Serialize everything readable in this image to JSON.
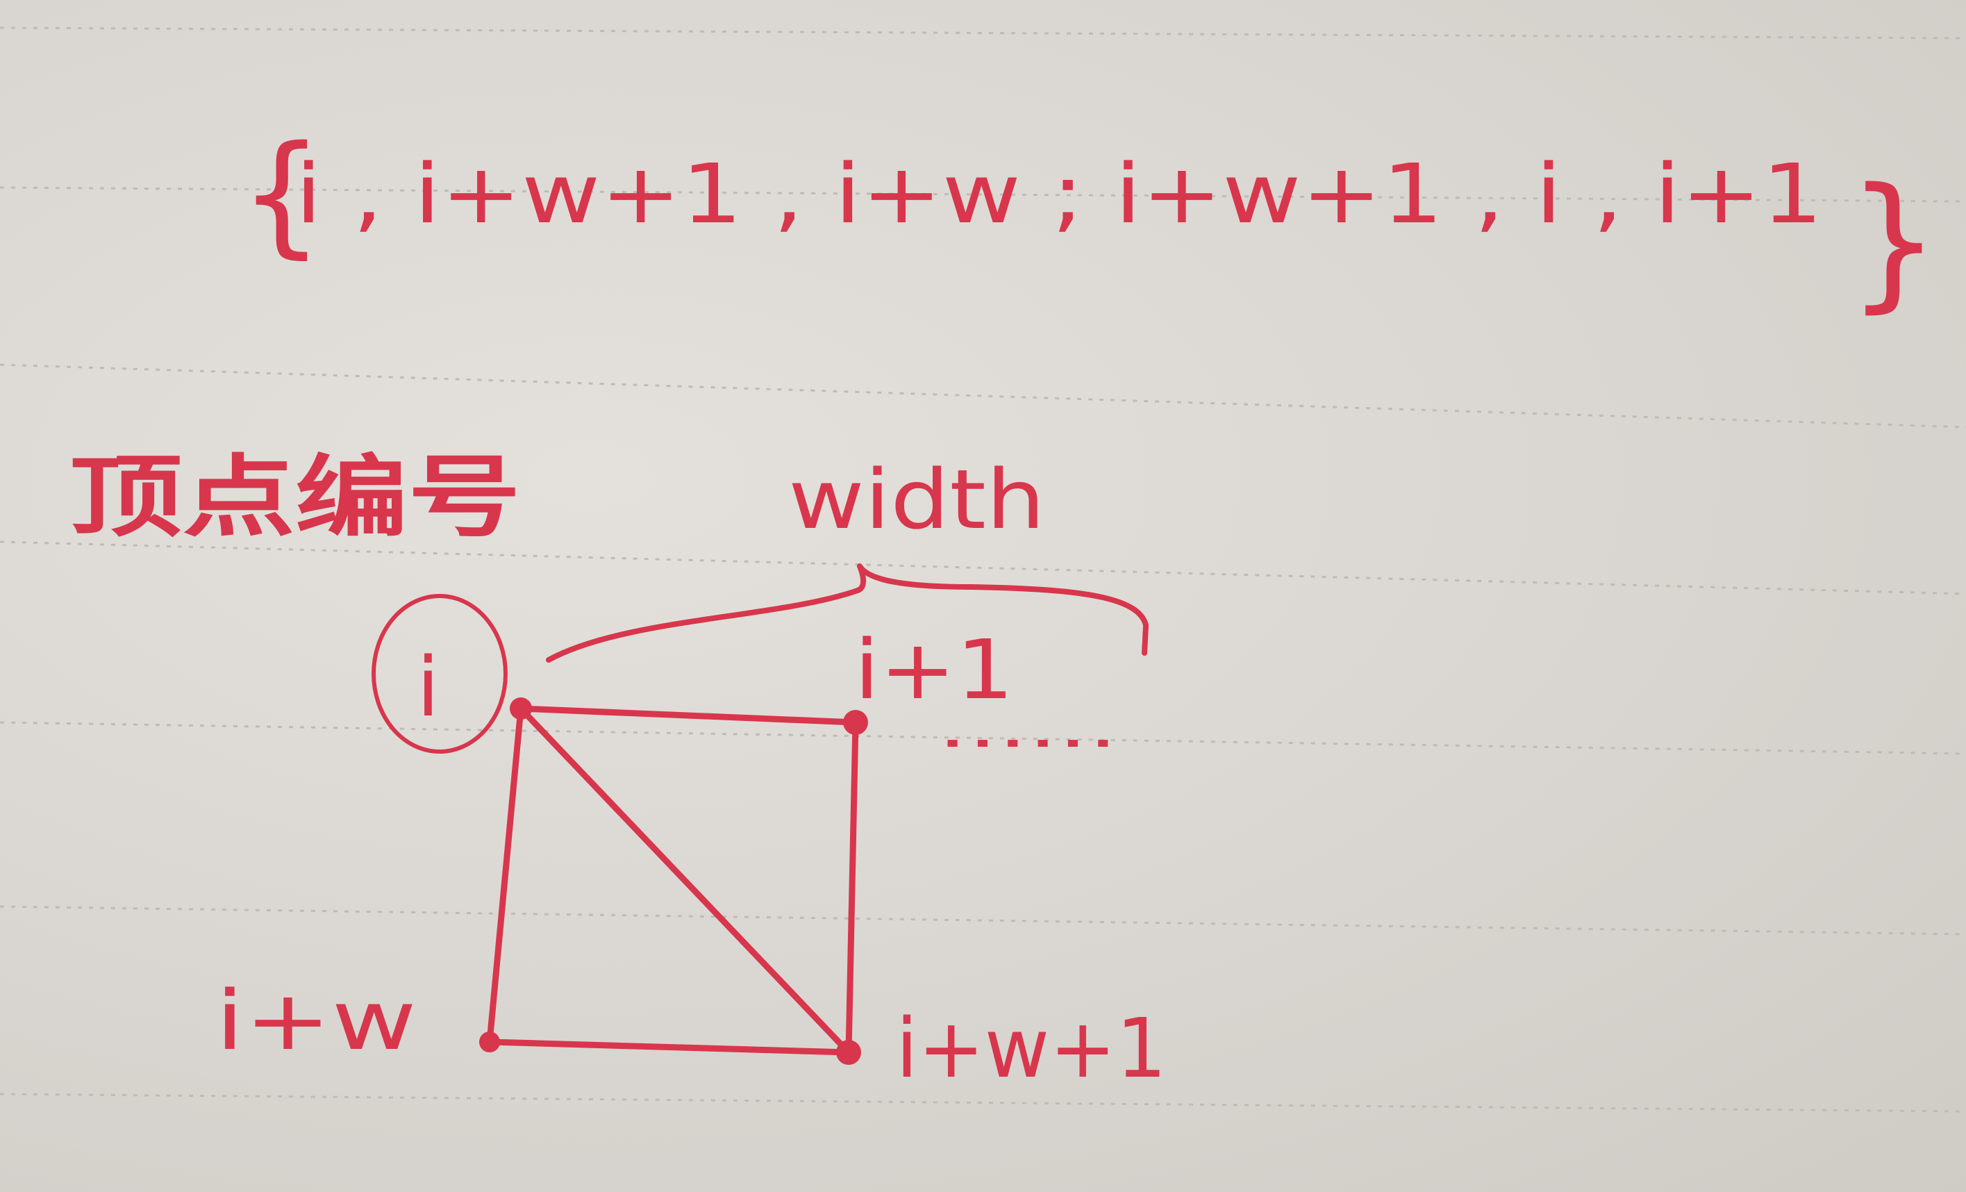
{
  "formula": {
    "open_brace": "{",
    "text": "i , i+w+1 , i+w ;   i+w+1 , i , i+1",
    "close_brace": "}"
  },
  "heading": "顶点编号",
  "width_label": "width",
  "vertices": {
    "top_left": "i",
    "top_right": "i+1",
    "bottom_left": "i+w",
    "bottom_right": "i+w+1"
  },
  "continuation": "......",
  "ink_color": "#d8364c"
}
